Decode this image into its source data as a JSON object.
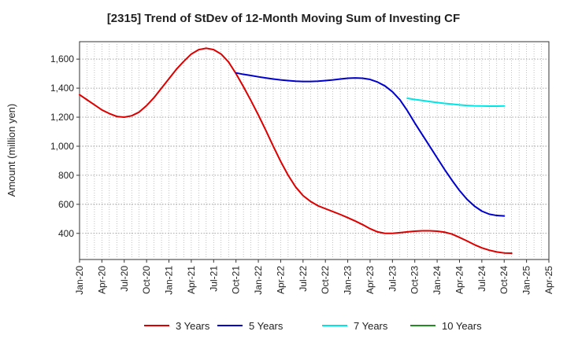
{
  "chart_data": {
    "type": "line",
    "title": "[2315]  Trend of StDev of 12-Month Moving Sum of Investing CF",
    "ylabel": "Amount (million yen)",
    "xlabel": "",
    "ylim": [
      220,
      1720
    ],
    "yticks": [
      400,
      600,
      800,
      1000,
      1200,
      1400,
      1600
    ],
    "ytick_labels": [
      "400",
      "600",
      "800",
      "1,000",
      "1,200",
      "1,400",
      "1,600"
    ],
    "x_range": [
      "2020-01",
      "2025-04"
    ],
    "xticks": [
      "Jan-20",
      "Apr-20",
      "Jul-20",
      "Oct-20",
      "Jan-21",
      "Apr-21",
      "Jul-21",
      "Oct-21",
      "Jan-22",
      "Apr-22",
      "Jul-22",
      "Oct-22",
      "Jan-23",
      "Apr-23",
      "Jul-23",
      "Oct-23",
      "Jan-24",
      "Apr-24",
      "Jul-24",
      "Oct-24",
      "Jan-25",
      "Apr-25"
    ],
    "grid": true,
    "legend_position": "bottom",
    "series": [
      {
        "name": "3 Years",
        "color": "#dd0000",
        "points": [
          [
            "2020-01",
            1355
          ],
          [
            "2020-02",
            1320
          ],
          [
            "2020-03",
            1285
          ],
          [
            "2020-04",
            1250
          ],
          [
            "2020-05",
            1225
          ],
          [
            "2020-06",
            1205
          ],
          [
            "2020-07",
            1200
          ],
          [
            "2020-08",
            1210
          ],
          [
            "2020-09",
            1235
          ],
          [
            "2020-10",
            1280
          ],
          [
            "2020-11",
            1335
          ],
          [
            "2020-12",
            1400
          ],
          [
            "2021-01",
            1465
          ],
          [
            "2021-02",
            1530
          ],
          [
            "2021-03",
            1585
          ],
          [
            "2021-04",
            1635
          ],
          [
            "2021-05",
            1665
          ],
          [
            "2021-06",
            1675
          ],
          [
            "2021-07",
            1665
          ],
          [
            "2021-08",
            1635
          ],
          [
            "2021-09",
            1580
          ],
          [
            "2021-10",
            1500
          ],
          [
            "2021-11",
            1410
          ],
          [
            "2021-12",
            1315
          ],
          [
            "2022-01",
            1215
          ],
          [
            "2022-02",
            1110
          ],
          [
            "2022-03",
            1000
          ],
          [
            "2022-04",
            895
          ],
          [
            "2022-05",
            800
          ],
          [
            "2022-06",
            720
          ],
          [
            "2022-07",
            660
          ],
          [
            "2022-08",
            620
          ],
          [
            "2022-09",
            590
          ],
          [
            "2022-10",
            570
          ],
          [
            "2022-11",
            550
          ],
          [
            "2022-12",
            530
          ],
          [
            "2023-01",
            508
          ],
          [
            "2023-02",
            485
          ],
          [
            "2023-03",
            460
          ],
          [
            "2023-04",
            432
          ],
          [
            "2023-05",
            410
          ],
          [
            "2023-06",
            400
          ],
          [
            "2023-07",
            400
          ],
          [
            "2023-08",
            405
          ],
          [
            "2023-09",
            410
          ],
          [
            "2023-10",
            415
          ],
          [
            "2023-11",
            418
          ],
          [
            "2023-12",
            418
          ],
          [
            "2024-01",
            415
          ],
          [
            "2024-02",
            408
          ],
          [
            "2024-03",
            395
          ],
          [
            "2024-04",
            372
          ],
          [
            "2024-05",
            348
          ],
          [
            "2024-06",
            322
          ],
          [
            "2024-07",
            300
          ],
          [
            "2024-08",
            284
          ],
          [
            "2024-09",
            272
          ],
          [
            "2024-10",
            265
          ],
          [
            "2024-11",
            263
          ]
        ]
      },
      {
        "name": "5 Years",
        "color": "#0000cc",
        "points": [
          [
            "2021-10",
            1505
          ],
          [
            "2021-11",
            1495
          ],
          [
            "2021-12",
            1487
          ],
          [
            "2022-01",
            1478
          ],
          [
            "2022-02",
            1470
          ],
          [
            "2022-03",
            1463
          ],
          [
            "2022-04",
            1457
          ],
          [
            "2022-05",
            1452
          ],
          [
            "2022-06",
            1448
          ],
          [
            "2022-07",
            1446
          ],
          [
            "2022-08",
            1446
          ],
          [
            "2022-09",
            1448
          ],
          [
            "2022-10",
            1452
          ],
          [
            "2022-11",
            1457
          ],
          [
            "2022-12",
            1463
          ],
          [
            "2023-01",
            1468
          ],
          [
            "2023-02",
            1470
          ],
          [
            "2023-03",
            1468
          ],
          [
            "2023-04",
            1460
          ],
          [
            "2023-05",
            1442
          ],
          [
            "2023-06",
            1415
          ],
          [
            "2023-07",
            1375
          ],
          [
            "2023-08",
            1320
          ],
          [
            "2023-09",
            1245
          ],
          [
            "2023-10",
            1160
          ],
          [
            "2023-11",
            1080
          ],
          [
            "2023-12",
            1000
          ],
          [
            "2024-01",
            920
          ],
          [
            "2024-02",
            840
          ],
          [
            "2024-03",
            765
          ],
          [
            "2024-04",
            695
          ],
          [
            "2024-05",
            635
          ],
          [
            "2024-06",
            588
          ],
          [
            "2024-07",
            553
          ],
          [
            "2024-08",
            532
          ],
          [
            "2024-09",
            523
          ],
          [
            "2024-10",
            520
          ]
        ]
      },
      {
        "name": "7 Years",
        "color": "#00e5e5",
        "points": [
          [
            "2023-09",
            1330
          ],
          [
            "2023-10",
            1322
          ],
          [
            "2023-11",
            1315
          ],
          [
            "2023-12",
            1308
          ],
          [
            "2024-01",
            1301
          ],
          [
            "2024-02",
            1295
          ],
          [
            "2024-03",
            1290
          ],
          [
            "2024-04",
            1285
          ],
          [
            "2024-05",
            1281
          ],
          [
            "2024-06",
            1278
          ],
          [
            "2024-07",
            1277
          ],
          [
            "2024-08",
            1276
          ],
          [
            "2024-09",
            1276
          ],
          [
            "2024-10",
            1277
          ]
        ]
      },
      {
        "name": "10 Years",
        "color": "#228b22",
        "points": []
      }
    ]
  }
}
